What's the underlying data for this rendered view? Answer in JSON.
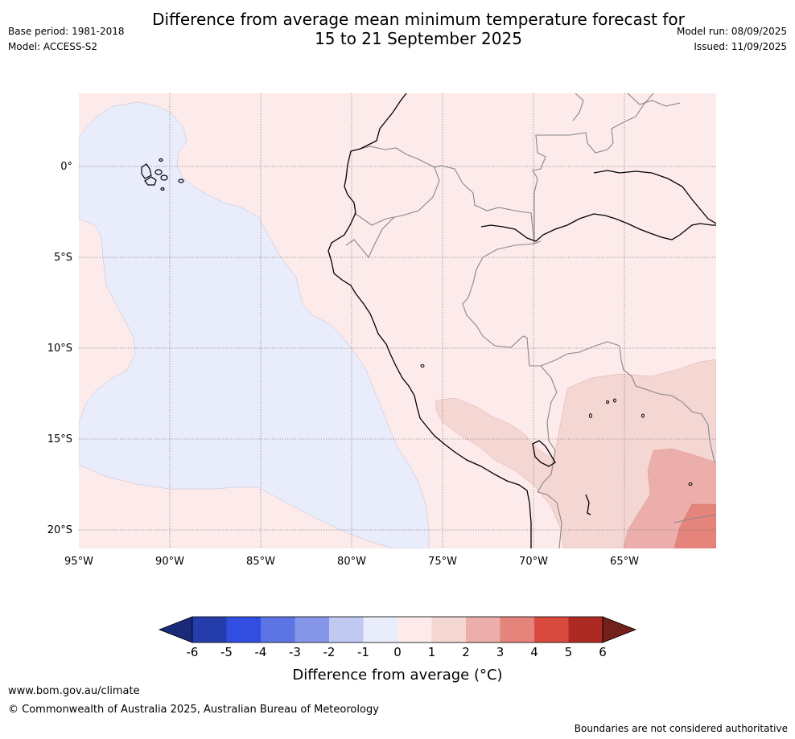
{
  "header": {
    "title_line1": "Difference from average mean minimum temperature forecast for",
    "title_line2": "15 to 21 September 2025",
    "base_period": "Base period: 1981-2018",
    "model": "Model: ACCESS-S2",
    "model_run": "Model run: 08/09/2025",
    "issued": "Issued: 11/09/2025"
  },
  "map": {
    "lat_ticks": [
      "0°",
      "5°S",
      "10°S",
      "15°S",
      "20°S"
    ],
    "lon_ticks": [
      "95°W",
      "90°W",
      "85°W",
      "80°W",
      "75°W",
      "70°W",
      "65°W"
    ],
    "ocean_anomaly_color": "#e8ecfb",
    "land_anomaly_color": "#fcebea"
  },
  "colorbar": {
    "labels": [
      "-6",
      "-5",
      "-4",
      "-3",
      "-2",
      "-1",
      "0",
      "1",
      "2",
      "3",
      "4",
      "5",
      "6"
    ],
    "colors": [
      "#1a2a7a",
      "#253dab",
      "#324ee0",
      "#5c74e4",
      "#8596e9",
      "#c1c9f3",
      "#e8ecfb",
      "#fcebea",
      "#f4d6d3",
      "#ecaeaa",
      "#e5847b",
      "#d94a3e",
      "#ad2a22",
      "#71201a"
    ],
    "title": "Difference from average (°C)"
  },
  "footer": {
    "website": "www.bom.gov.au/climate",
    "copyright": "© Commonwealth of Australia 2025, Australian Bureau of Meteorology",
    "disclaimer": "Boundaries are not considered authoritative"
  }
}
